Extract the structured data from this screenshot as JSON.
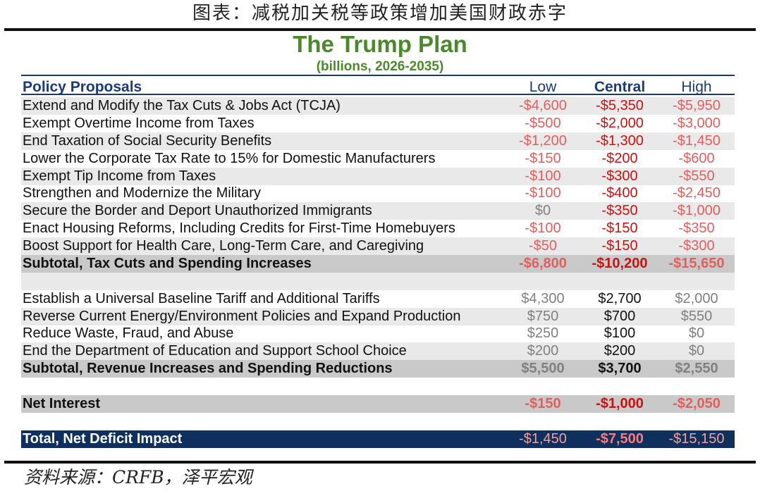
{
  "caption": "图表：减税加关税等政策增加美国财政赤字",
  "title": "The Trump Plan",
  "subtitle": "(billions, 2026-2035)",
  "header": {
    "label": "Policy Proposals",
    "low": "Low",
    "central": "Central",
    "high": "High"
  },
  "rows": [
    {
      "label": "Extend and Modify the Tax Cuts & Jobs Act (TCJA)",
      "low": "-$4,600",
      "central": "-$5,350",
      "high": "-$5,950"
    },
    {
      "label": "Exempt Overtime Income from Taxes",
      "low": "-$500",
      "central": "-$2,000",
      "high": "-$3,000"
    },
    {
      "label": "End Taxation of Social Security Benefits",
      "low": "-$1,200",
      "central": "-$1,300",
      "high": "-$1,450"
    },
    {
      "label": "Lower the Corporate Tax Rate to 15% for Domestic Manufacturers",
      "low": "-$150",
      "central": "-$200",
      "high": "-$600"
    },
    {
      "label": "Exempt Tip Income from Taxes",
      "low": "-$100",
      "central": "-$300",
      "high": "-$550"
    },
    {
      "label": "Strengthen and Modernize the Military",
      "low": "-$100",
      "central": "-$400",
      "high": "-$2,450"
    },
    {
      "label": "Secure the Border and Deport Unauthorized Immigrants",
      "low": "$0",
      "central": "-$350",
      "high": "-$1,000"
    },
    {
      "label": "Enact Housing Reforms, Including Credits for First-Time Homebuyers",
      "low": "-$100",
      "central": "-$150",
      "high": "-$350"
    },
    {
      "label": "Boost Support for Health Care, Long-Term Care, and Caregiving",
      "low": "-$50",
      "central": "-$150",
      "high": "-$300"
    },
    {
      "label": "Subtotal, Tax Cuts and Spending Increases",
      "low": "-$6,800",
      "central": "-$10,200",
      "high": "-$15,650"
    },
    {
      "label": "Establish a Universal Baseline Tariff and Additional Tariffs",
      "low": "$4,300",
      "central": "$2,700",
      "high": "$2,000"
    },
    {
      "label": "Reverse Current Energy/Environment Policies and Expand Production",
      "low": "$750",
      "central": "$700",
      "high": "$550"
    },
    {
      "label": "Reduce Waste, Fraud, and Abuse",
      "low": "$250",
      "central": "$100",
      "high": "$0"
    },
    {
      "label": "End the Department of Education and Support School Choice",
      "low": "$200",
      "central": "$200",
      "high": "$0"
    },
    {
      "label": "Subtotal, Revenue Increases and Spending Reductions",
      "low": "$5,500",
      "central": "$3,700",
      "high": "$2,550"
    },
    {
      "label": "Net Interest",
      "low": "-$150",
      "central": "-$1,000",
      "high": "-$2,050"
    },
    {
      "label": "Total, Net Deficit Impact",
      "low": "-$1,450",
      "central": "-$7,500",
      "high": "-$15,150"
    }
  ],
  "source": "资料来源：CRFB，泽平宏观",
  "colors": {
    "title_green": "#4a8a2a",
    "header_blue": "#1a3b78",
    "negative_red": "#cc1111",
    "total_bar": "#0f2f5c"
  }
}
